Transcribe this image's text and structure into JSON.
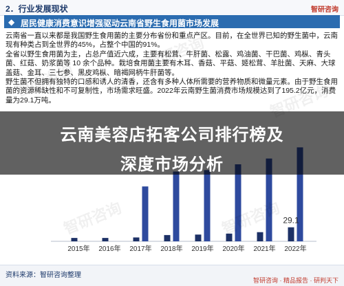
{
  "header": {
    "section_label": "2．行业发展现状",
    "brand": "智研咨询"
  },
  "banner": {
    "badge": "◆",
    "title": "居民健康消费意识增强驱动云南省野生食用菌市场发展"
  },
  "paragraphs": [
    "云南省一直以来都是我国野生食用菌的主要分布省份和重点产区。目前，在全世界已知的野生菌中，云南现有种类占到全世界的45%，占整个中国的91%。",
    "全省以野生食用菌为主，占总产值近六成，主要有松茸、牛肝菌、松露、鸡油菌、干巴菌、鸡枞、青头菌、红菇、奶浆菌等 10 余个品种。栽培食用菌主要有木耳、香菇、平菇、姬松茸、羊肚菌、天麻、大球盖菇、金耳、三七参、黑皮鸡枞、暗褐网柄牛肝菌等。",
    "野生菌不但拥有独特的口感和诱人的清香，还含有多种人体所需要的营养物质和微量元素。由于野生食用菌的资源稀缺性和不可复制性，市场需求旺盛。2022年云南野生菌消费市场规模达到了195.2亿元，消费量为29.1万吨。"
  ],
  "overlay": {
    "line1": "云南美容店拓客公司排行榜及",
    "line2": "深度市场分析"
  },
  "chart_data": {
    "type": "bar",
    "categories": [
      "2015年",
      "2016年",
      "2017年",
      "2018年",
      "2019年",
      "2020年",
      "2021年",
      "2022年"
    ],
    "series": [
      {
        "values": [
          null,
          null,
          114,
          145,
          148,
          160,
          172,
          195.2
        ],
        "color": "#2e4a9e"
      },
      {
        "values": [
          7,
          7,
          8,
          13,
          14,
          16,
          19,
          29.1
        ],
        "color": "#1d3166"
      }
    ],
    "data_labels": [
      {
        "category": "2022年",
        "text": "29.1"
      }
    ],
    "ylim": [
      0,
      210
    ],
    "grid": false
  },
  "footer": {
    "source": "资料来源：智研咨询整理",
    "brand": "智研咨询 · 精品报告 · 研判天下"
  },
  "watermark_text": "智研咨询"
}
